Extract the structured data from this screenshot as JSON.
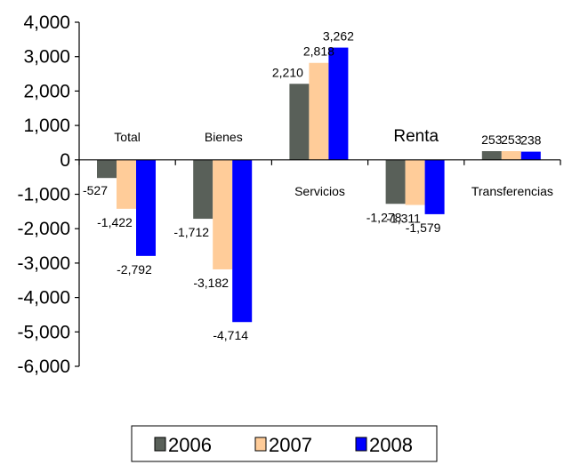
{
  "chart_data": {
    "type": "bar",
    "categories": [
      "Total",
      "Bienes",
      "Servicios",
      "Renta",
      "Transferencias"
    ],
    "series": [
      {
        "name": "2006",
        "color": "#596059",
        "values": [
          -527,
          -1712,
          2210,
          -1278,
          253
        ]
      },
      {
        "name": "2007",
        "color": "#FFCC99",
        "values": [
          -1422,
          -3182,
          2818,
          -1311,
          253
        ]
      },
      {
        "name": "2008",
        "color": "#0000FF",
        "values": [
          -2792,
          -4714,
          3262,
          -1579,
          238
        ]
      }
    ],
    "data_labels": [
      [
        "-527",
        "-1,422",
        "-2,792"
      ],
      [
        "-1,712",
        "-3,182",
        "-4,714"
      ],
      [
        "2,210",
        "2,818",
        "3,262"
      ],
      [
        "-1,278",
        "-1,311",
        "-1,579"
      ],
      [
        "253",
        "253",
        "238"
      ]
    ],
    "yticks": [
      4000,
      3000,
      2000,
      1000,
      0,
      -1000,
      -2000,
      -3000,
      -4000,
      -5000,
      -6000
    ],
    "ytick_labels": [
      "4,000",
      "3,000",
      "2,000",
      "1,000",
      "0",
      "-1,000",
      "-2,000",
      "-3,000",
      "-4,000",
      "-5,000",
      "-6,000"
    ],
    "ylim": [
      -6000,
      4000
    ],
    "legend": [
      "2006",
      "2007",
      "2008"
    ],
    "legend_position": "bottom",
    "grid": false
  }
}
